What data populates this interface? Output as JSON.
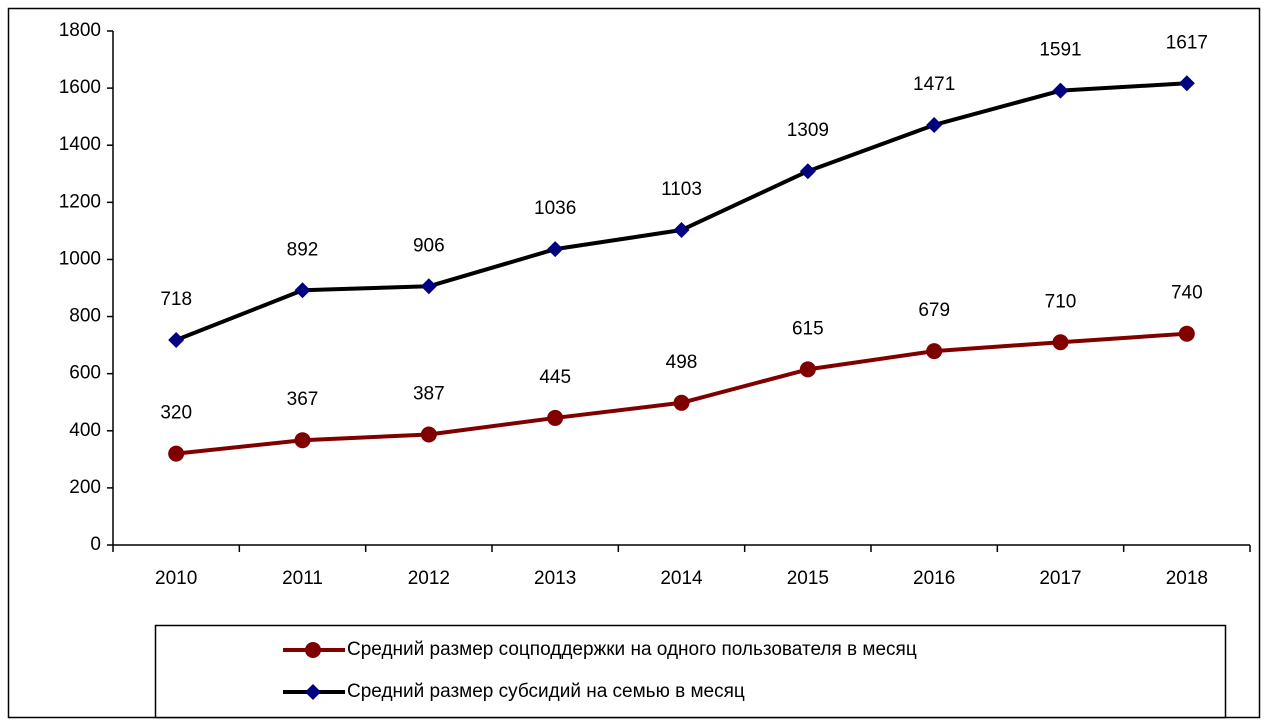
{
  "chart_data": {
    "type": "line",
    "categories": [
      "2010",
      "2011",
      "2012",
      "2013",
      "2014",
      "2015",
      "2016",
      "2017",
      "2018"
    ],
    "series": [
      {
        "name": "Средний размер соцподдержки на одного пользователя в месяц",
        "color": "#800000",
        "marker": "circle",
        "marker_color": "#800000",
        "values": [
          320,
          367,
          387,
          445,
          498,
          615,
          679,
          710,
          740
        ]
      },
      {
        "name": "Средний размер субсидий на семью в месяц",
        "color": "#000000",
        "marker": "diamond",
        "marker_color": "#000080",
        "values": [
          718,
          892,
          906,
          1036,
          1103,
          1309,
          1471,
          1591,
          1617
        ]
      }
    ],
    "ylim": [
      0,
      1800
    ],
    "yticks": [
      0,
      200,
      400,
      600,
      800,
      1000,
      1200,
      1400,
      1600,
      1800
    ],
    "grid": false,
    "legend": "bottom"
  }
}
